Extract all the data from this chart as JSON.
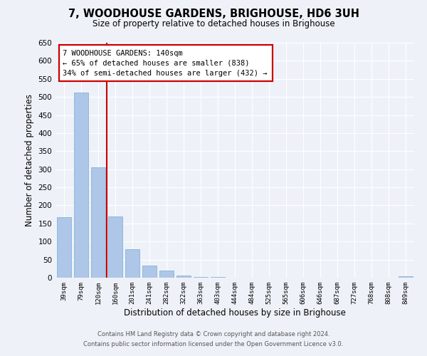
{
  "title": "7, WOODHOUSE GARDENS, BRIGHOUSE, HD6 3UH",
  "subtitle": "Size of property relative to detached houses in Brighouse",
  "xlabel": "Distribution of detached houses by size in Brighouse",
  "ylabel": "Number of detached properties",
  "bar_color": "#aec6e8",
  "bar_edge_color": "#7aaad4",
  "bar_categories": [
    "39sqm",
    "79sqm",
    "120sqm",
    "160sqm",
    "201sqm",
    "241sqm",
    "282sqm",
    "322sqm",
    "363sqm",
    "403sqm",
    "444sqm",
    "484sqm",
    "525sqm",
    "565sqm",
    "606sqm",
    "646sqm",
    "687sqm",
    "727sqm",
    "768sqm",
    "808sqm",
    "849sqm"
  ],
  "bar_values": [
    167,
    512,
    305,
    170,
    78,
    33,
    20,
    5,
    2,
    1,
    0,
    0,
    0,
    0,
    0,
    0,
    0,
    0,
    0,
    0,
    4
  ],
  "ylim": [
    0,
    650
  ],
  "yticks": [
    0,
    50,
    100,
    150,
    200,
    250,
    300,
    350,
    400,
    450,
    500,
    550,
    600,
    650
  ],
  "vline_x": 2.5,
  "vline_color": "#cc0000",
  "annotation_title": "7 WOODHOUSE GARDENS: 140sqm",
  "annotation_line1": "← 65% of detached houses are smaller (838)",
  "annotation_line2": "34% of semi-detached houses are larger (432) →",
  "annotation_box_color": "#cc0000",
  "annotation_text_color": "#000000",
  "background_color": "#eef2f8",
  "plot_bg_color": "#eef2f8",
  "grid_color": "#ffffff",
  "footer1": "Contains HM Land Registry data © Crown copyright and database right 2024.",
  "footer2": "Contains public sector information licensed under the Open Government Licence v3.0."
}
